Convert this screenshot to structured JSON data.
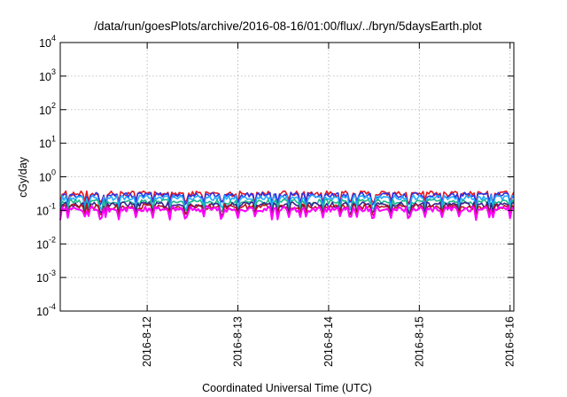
{
  "chart_data": {
    "type": "line",
    "title": "/data/run/goesPlots/archive/2016-08-16/01:00/flux/../bryn/5daysEarth.plot",
    "xlabel": "Coordinated Universal Time (UTC)",
    "ylabel": "cGy/day",
    "yscale": "log",
    "ylim": [
      0.0001,
      10000
    ],
    "xlim": [
      "2016-08-11T01:00",
      "2016-08-16T01:00"
    ],
    "grid": true,
    "legend": "none",
    "y_ticks": [
      {
        "value": 0.0001,
        "base": "10",
        "exp": "-4"
      },
      {
        "value": 0.001,
        "base": "10",
        "exp": "-3"
      },
      {
        "value": 0.01,
        "base": "10",
        "exp": "-2"
      },
      {
        "value": 0.1,
        "base": "10",
        "exp": "-1"
      },
      {
        "value": 1,
        "base": "10",
        "exp": "0"
      },
      {
        "value": 10,
        "base": "10",
        "exp": "1"
      },
      {
        "value": 100,
        "base": "10",
        "exp": "2"
      },
      {
        "value": 1000,
        "base": "10",
        "exp": "3"
      },
      {
        "value": 10000,
        "base": "10",
        "exp": "4"
      }
    ],
    "x_ticks": [
      {
        "value": "2016-08-12T00:00",
        "label": "2016-8-12"
      },
      {
        "value": "2016-08-13T00:00",
        "label": "2016-8-13"
      },
      {
        "value": "2016-08-14T00:00",
        "label": "2016-8-14"
      },
      {
        "value": "2016-08-15T00:00",
        "label": "2016-8-15"
      },
      {
        "value": "2016-08-16T00:00",
        "label": "2016-8-16"
      }
    ],
    "series": [
      {
        "color": "#e3171d",
        "typical": 0.32,
        "dip": 0.18
      },
      {
        "color": "#2f2fe0",
        "typical": 0.29,
        "dip": 0.16
      },
      {
        "color": "#22aaff",
        "typical": 0.24,
        "dip": 0.12
      },
      {
        "color": "#1ab88a",
        "typical": 0.18,
        "dip": 0.1
      },
      {
        "color": "#3a2090",
        "typical": 0.15,
        "dip": 0.085
      },
      {
        "color": "#b5121b",
        "typical": 0.13,
        "dip": 0.075
      },
      {
        "color": "#ff00ff",
        "typical": 0.11,
        "dip": 0.06
      }
    ]
  }
}
